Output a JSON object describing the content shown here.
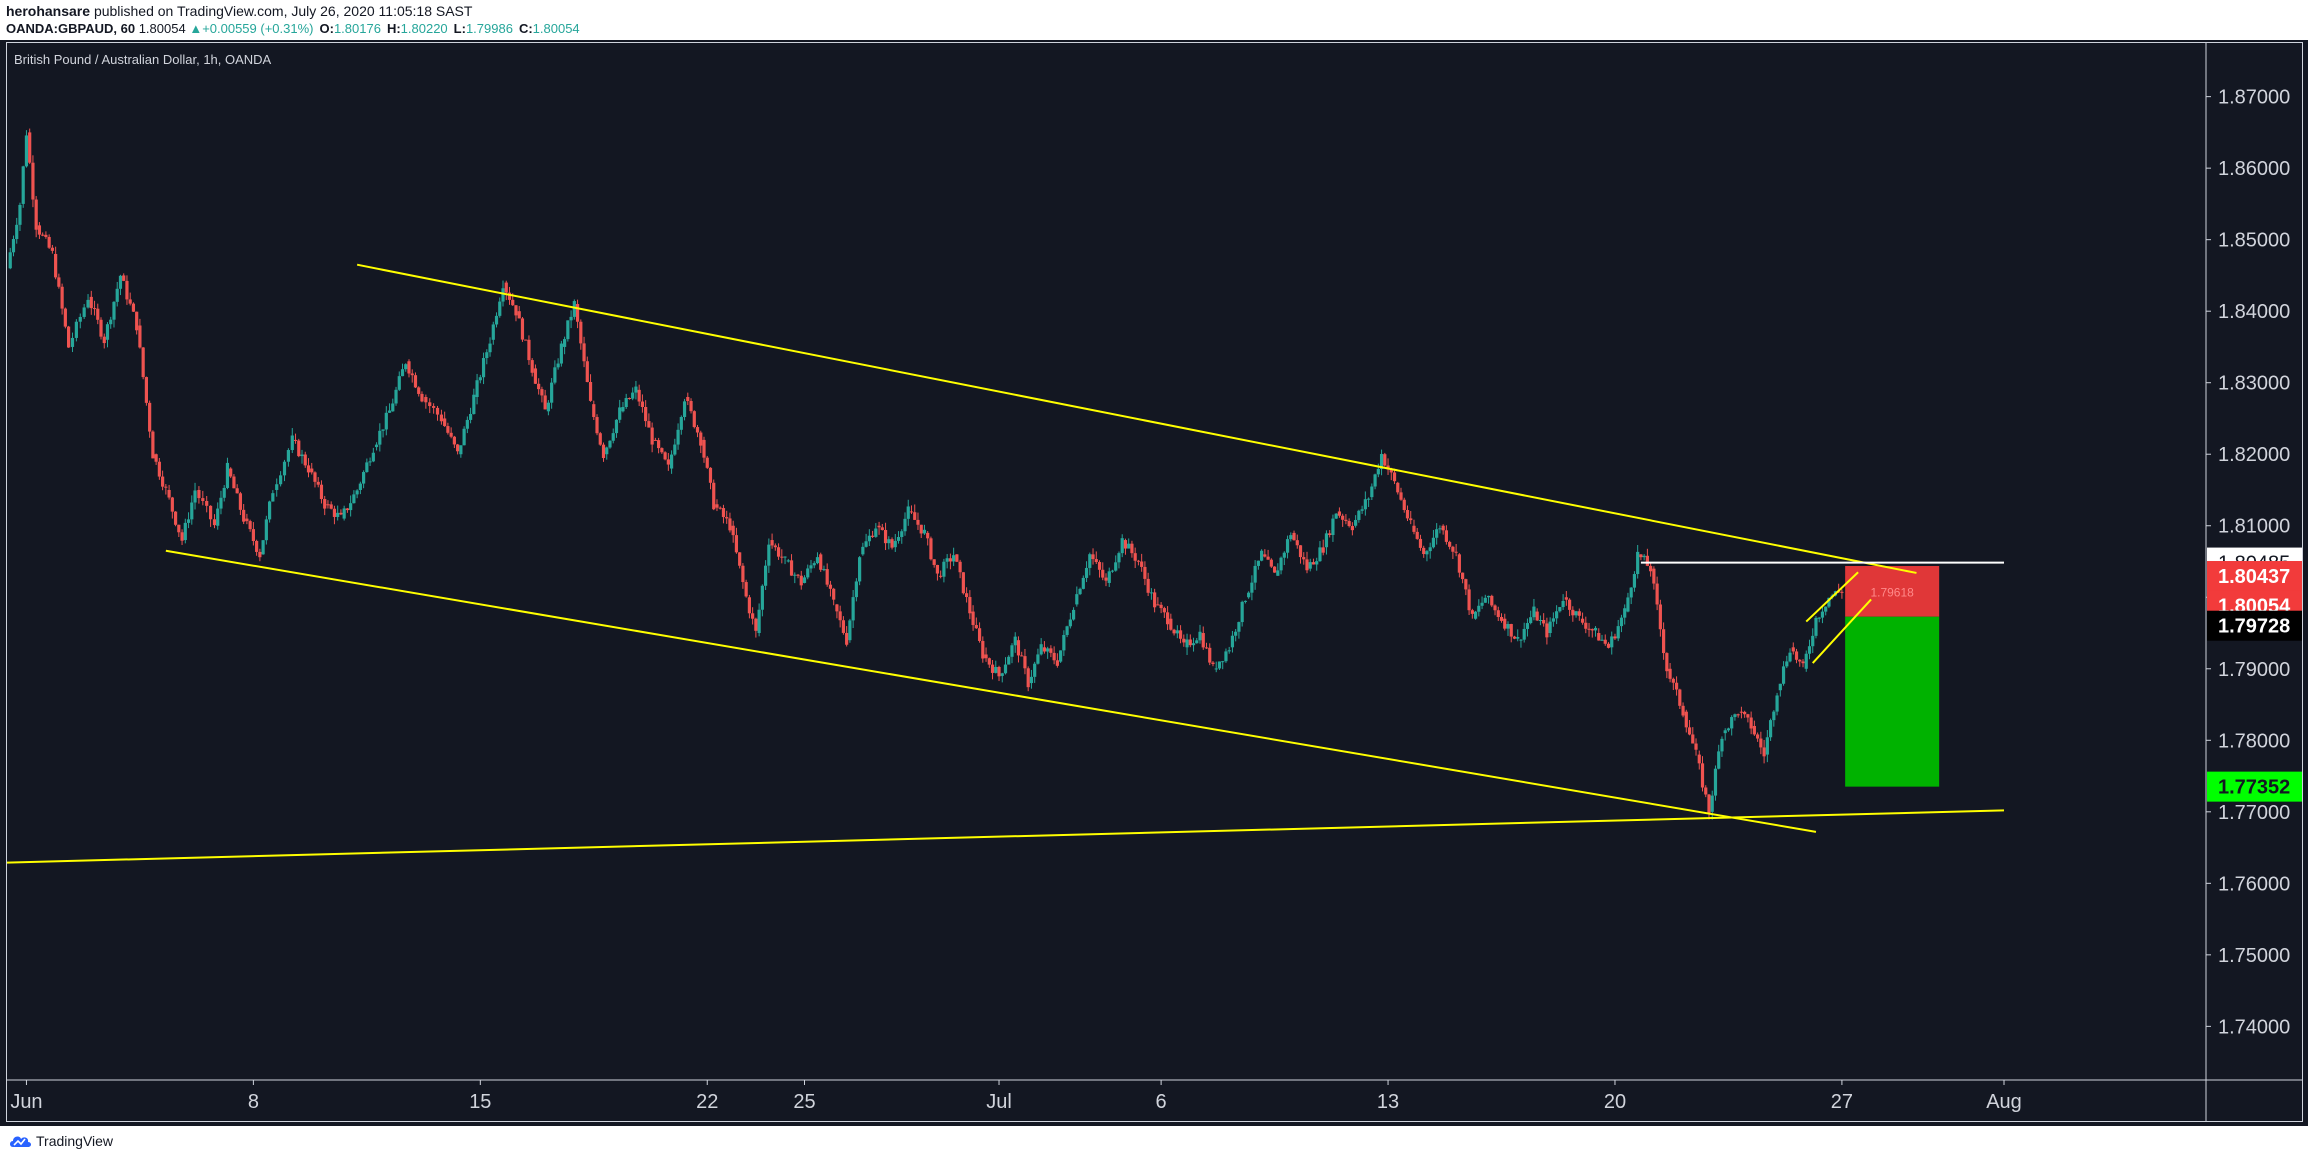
{
  "header": {
    "user": "herohansare",
    "published_text": "published on TradingView.com, July 26, 2020 11:05:18 SAST",
    "symbol": "OANDA:GBPAUD, 60",
    "last": "1.80054",
    "change_arrow": "▲",
    "change": "+0.00559 (+0.31%)",
    "open_label": "O:",
    "open": "1.80176",
    "high_label": "H:",
    "high": "1.80220",
    "low_label": "L:",
    "low": "1.79986",
    "close_label": "C:",
    "close": "1.80054"
  },
  "pane_title": "British Pound / Australian Dollar, 1h, OANDA",
  "footer": {
    "brand": "TradingView",
    "brand_icon": "tradingview-cloud-icon"
  },
  "colors": {
    "background": "#131722",
    "up": "#26a69a",
    "down": "#ef5350",
    "trendline": "#ffff00",
    "stop_zone": "#f23b3b",
    "target_zone": "#00b200",
    "axis_text": "#d1d4dc"
  },
  "chart_data": {
    "type": "candlestick",
    "symbol": "OANDA:GBPAUD",
    "timeframe": "1h",
    "y_axis": {
      "position": "right",
      "ylim": [
        1.7325,
        1.8775
      ],
      "ticks": [
        "1.87000",
        "1.86000",
        "1.85000",
        "1.84000",
        "1.83000",
        "1.82000",
        "1.81000",
        "1.80000",
        "1.79000",
        "1.78000",
        "1.77000",
        "1.76000",
        "1.75000",
        "1.74000"
      ],
      "price_labels": [
        {
          "value": "1.80485",
          "bg": "#ffffff",
          "fg": "#131722",
          "kind": "horizontal-line"
        },
        {
          "value": "1.80437",
          "bg": "#f23b3b",
          "fg": "#ffffff",
          "kind": "stop"
        },
        {
          "value": "1.80054",
          "bg": "#f23b3b",
          "fg": "#ffffff",
          "kind": "last-price"
        },
        {
          "value": "1.79728",
          "bg": "#000000",
          "fg": "#ffffff",
          "kind": "entry"
        },
        {
          "value": "1.77352",
          "bg": "#00ff00",
          "fg": "#131722",
          "kind": "target"
        }
      ]
    },
    "x_axis": {
      "labels": [
        {
          "text": "Jun",
          "day": 1
        },
        {
          "text": "8",
          "day": 8
        },
        {
          "text": "15",
          "day": 15
        },
        {
          "text": "22",
          "day": 22
        },
        {
          "text": "25",
          "day": 25
        },
        {
          "text": "Jul",
          "day": 31
        },
        {
          "text": "6",
          "day": 36
        },
        {
          "text": "13",
          "day": 43
        },
        {
          "text": "20",
          "day": 50
        },
        {
          "text": "27",
          "day": 57
        },
        {
          "text": "Aug",
          "day": 62
        }
      ],
      "range_days": [
        0.4,
        68.2
      ]
    },
    "price_path": [
      [
        0.4,
        1.846
      ],
      [
        0.8,
        1.855
      ],
      [
        1.0,
        1.865
      ],
      [
        1.3,
        1.852
      ],
      [
        1.8,
        1.848
      ],
      [
        2.3,
        1.835
      ],
      [
        2.9,
        1.842
      ],
      [
        3.4,
        1.836
      ],
      [
        3.9,
        1.845
      ],
      [
        4.4,
        1.838
      ],
      [
        4.9,
        1.82
      ],
      [
        5.3,
        1.815
      ],
      [
        5.8,
        1.808
      ],
      [
        6.2,
        1.815
      ],
      [
        6.8,
        1.81
      ],
      [
        7.2,
        1.818
      ],
      [
        7.7,
        1.811
      ],
      [
        8.2,
        1.806
      ],
      [
        8.6,
        1.815
      ],
      [
        9.2,
        1.822
      ],
      [
        9.7,
        1.818
      ],
      [
        10.2,
        1.813
      ],
      [
        10.7,
        1.811
      ],
      [
        11.2,
        1.815
      ],
      [
        11.7,
        1.821
      ],
      [
        12.2,
        1.826
      ],
      [
        12.7,
        1.833
      ],
      [
        13.2,
        1.828
      ],
      [
        13.8,
        1.825
      ],
      [
        14.3,
        1.82
      ],
      [
        14.8,
        1.828
      ],
      [
        15.3,
        1.836
      ],
      [
        15.7,
        1.844
      ],
      [
        16.1,
        1.84
      ],
      [
        16.6,
        1.832
      ],
      [
        17.0,
        1.826
      ],
      [
        17.5,
        1.835
      ],
      [
        17.9,
        1.841
      ],
      [
        18.4,
        1.827
      ],
      [
        18.8,
        1.82
      ],
      [
        19.3,
        1.826
      ],
      [
        19.8,
        1.829
      ],
      [
        20.3,
        1.822
      ],
      [
        20.8,
        1.818
      ],
      [
        21.3,
        1.828
      ],
      [
        21.8,
        1.822
      ],
      [
        22.2,
        1.813
      ],
      [
        22.7,
        1.81
      ],
      [
        23.2,
        1.8
      ],
      [
        23.5,
        1.795
      ],
      [
        23.9,
        1.808
      ],
      [
        24.4,
        1.805
      ],
      [
        24.9,
        1.802
      ],
      [
        25.4,
        1.806
      ],
      [
        25.9,
        1.799
      ],
      [
        26.3,
        1.794
      ],
      [
        26.7,
        1.806
      ],
      [
        27.2,
        1.81
      ],
      [
        27.7,
        1.807
      ],
      [
        28.2,
        1.812
      ],
      [
        28.7,
        1.809
      ],
      [
        29.1,
        1.803
      ],
      [
        29.6,
        1.806
      ],
      [
        30.1,
        1.798
      ],
      [
        30.5,
        1.792
      ],
      [
        31.0,
        1.789
      ],
      [
        31.5,
        1.794
      ],
      [
        31.9,
        1.788
      ],
      [
        32.3,
        1.793
      ],
      [
        32.8,
        1.791
      ],
      [
        33.3,
        1.799
      ],
      [
        33.8,
        1.806
      ],
      [
        34.3,
        1.802
      ],
      [
        34.8,
        1.808
      ],
      [
        35.3,
        1.805
      ],
      [
        35.8,
        1.799
      ],
      [
        36.2,
        1.797
      ],
      [
        36.7,
        1.793
      ],
      [
        37.2,
        1.795
      ],
      [
        37.6,
        1.79
      ],
      [
        38.1,
        1.793
      ],
      [
        38.6,
        1.8
      ],
      [
        39.1,
        1.806
      ],
      [
        39.5,
        1.803
      ],
      [
        40.0,
        1.809
      ],
      [
        40.5,
        1.804
      ],
      [
        41.0,
        1.807
      ],
      [
        41.4,
        1.812
      ],
      [
        41.9,
        1.81
      ],
      [
        42.4,
        1.814
      ],
      [
        42.8,
        1.82
      ],
      [
        43.2,
        1.816
      ],
      [
        43.7,
        1.81
      ],
      [
        44.1,
        1.806
      ],
      [
        44.6,
        1.81
      ],
      [
        45.1,
        1.806
      ],
      [
        45.6,
        1.797
      ],
      [
        46.0,
        1.8
      ],
      [
        46.5,
        1.797
      ],
      [
        47.0,
        1.794
      ],
      [
        47.5,
        1.798
      ],
      [
        47.9,
        1.795
      ],
      [
        48.4,
        1.8
      ],
      [
        48.9,
        1.797
      ],
      [
        49.4,
        1.795
      ],
      [
        49.8,
        1.793
      ],
      [
        50.3,
        1.798
      ],
      [
        50.7,
        1.806
      ],
      [
        51.1,
        1.804
      ],
      [
        51.6,
        1.79
      ],
      [
        52.1,
        1.784
      ],
      [
        52.5,
        1.778
      ],
      [
        52.9,
        1.77
      ],
      [
        53.3,
        1.781
      ],
      [
        53.8,
        1.784
      ],
      [
        54.2,
        1.782
      ],
      [
        54.6,
        1.778
      ],
      [
        55.0,
        1.787
      ],
      [
        55.4,
        1.793
      ],
      [
        55.8,
        1.79
      ],
      [
        56.2,
        1.797
      ],
      [
        56.6,
        1.8
      ],
      [
        57.0,
        1.801
      ]
    ],
    "drawings": [
      {
        "name": "channel-upper-line",
        "from": [
          11.2,
          1.8465
        ],
        "to": [
          59.3,
          1.8034
        ]
      },
      {
        "name": "channel-lower-line",
        "from": [
          5.3,
          1.8065
        ],
        "to": [
          56.2,
          1.7672
        ]
      },
      {
        "name": "support-line",
        "from": [
          0.4,
          1.7629
        ],
        "to": [
          62.0,
          1.7702
        ]
      },
      {
        "name": "resistance-horizontal-line",
        "from": [
          50.8,
          1.80485
        ],
        "to": [
          62.0,
          1.80485
        ]
      },
      {
        "name": "flag-upper-line",
        "from": [
          55.9,
          1.7966
        ],
        "to": [
          57.5,
          1.8035
        ]
      },
      {
        "name": "flag-lower-line",
        "from": [
          56.1,
          1.7908
        ],
        "to": [
          57.9,
          1.7997
        ]
      }
    ],
    "position": {
      "type": "short",
      "entry": 1.79728,
      "stop": 1.80437,
      "target": 1.77352,
      "last": 1.80054,
      "zone_days": [
        57.1,
        60.0
      ],
      "stop_zone_label": "1.79618"
    }
  }
}
